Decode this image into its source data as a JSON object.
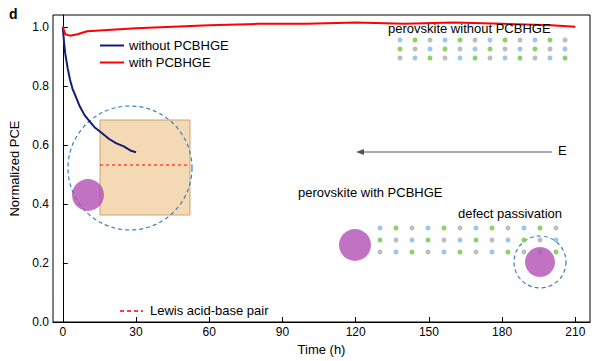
{
  "chart_data": {
    "type": "line",
    "title": "d",
    "x_label": "Time (h)",
    "y_label": "Normalized PCE",
    "xlim": [
      -4,
      216
    ],
    "xticks": [
      0,
      30,
      60,
      90,
      120,
      150,
      180,
      210
    ],
    "ylim": [
      0,
      1.04
    ],
    "yticks": [
      {
        "value": 0,
        "label": "0.0"
      },
      0.2,
      0.4,
      0.6,
      0.8,
      {
        "value": 1,
        "label": "1.0"
      }
    ],
    "grid": false,
    "legend": "upper left",
    "series": [
      {
        "name": "without PCBHGE",
        "color": "#131c78",
        "line_style": "solid",
        "x": [
          0,
          0.5,
          1,
          2,
          3,
          4,
          5,
          7,
          9,
          11,
          13,
          16,
          19,
          22,
          25,
          28,
          30
        ],
        "values": [
          1.0,
          0.95,
          0.91,
          0.86,
          0.82,
          0.79,
          0.77,
          0.73,
          0.7,
          0.68,
          0.66,
          0.64,
          0.62,
          0.605,
          0.595,
          0.58,
          0.575
        ]
      },
      {
        "name": "with PCBHGE",
        "color": "#ff0000",
        "line_style": "solid",
        "x": [
          0,
          1,
          3,
          6,
          10,
          20,
          30,
          45,
          60,
          80,
          100,
          120,
          140,
          160,
          180,
          200,
          210
        ],
        "values": [
          1.0,
          0.975,
          0.97,
          0.975,
          0.985,
          0.99,
          0.995,
          1.0,
          1.005,
          1.01,
          1.01,
          1.015,
          1.01,
          1.015,
          1.01,
          1.005,
          1.0
        ]
      }
    ],
    "annotations": [
      "perovskite without PCBHGE",
      "E",
      "perovskite with PCBHGE",
      "defect passivation",
      "Lewis acid-base pair"
    ]
  }
}
